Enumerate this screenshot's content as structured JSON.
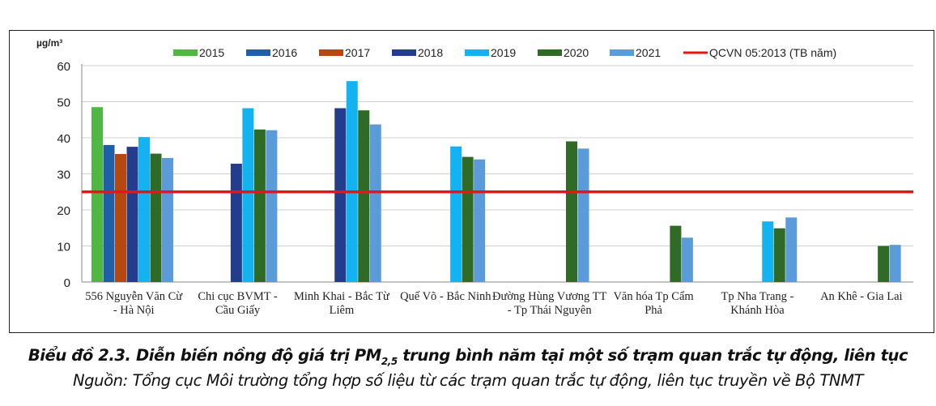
{
  "chart_data": {
    "type": "bar",
    "unit_label": "µg/m³",
    "ylim": [
      0,
      60
    ],
    "yticks": [
      0,
      10,
      20,
      30,
      40,
      50,
      60
    ],
    "grid": true,
    "legend_position": "top",
    "categories": [
      [
        "556 Nguyễn  Văn Cừ",
        "- Hà Nội"
      ],
      [
        "Chi cục BVMT -",
        "Cầu Giấy"
      ],
      [
        "Minh Khai - Bắc Từ",
        "Liêm"
      ],
      [
        "Quế Võ - Bắc Ninh"
      ],
      [
        "Đường Hùng Vương  TT",
        "- Tp Thái Nguyên"
      ],
      [
        "Văn hóa Tp Cẩm",
        "Phả"
      ],
      [
        "Tp Nha Trang -",
        "Khánh Hòa"
      ],
      [
        "An Khê - Gia Lai"
      ]
    ],
    "series": [
      {
        "name": "2015",
        "color": "#4fb843",
        "values": [
          48.5,
          null,
          null,
          null,
          null,
          null,
          null,
          null
        ]
      },
      {
        "name": "2016",
        "color": "#1f5fa8",
        "values": [
          38.0,
          null,
          null,
          null,
          null,
          null,
          null,
          null
        ]
      },
      {
        "name": "2017",
        "color": "#b5470f",
        "values": [
          35.5,
          null,
          null,
          null,
          null,
          null,
          null,
          null
        ]
      },
      {
        "name": "2018",
        "color": "#233d8c",
        "values": [
          37.5,
          32.8,
          48.2,
          null,
          null,
          null,
          null,
          null
        ]
      },
      {
        "name": "2019",
        "color": "#12b3f0",
        "values": [
          40.2,
          48.2,
          55.7,
          37.6,
          null,
          null,
          16.8,
          null
        ]
      },
      {
        "name": "2020",
        "color": "#2f6b27",
        "values": [
          35.6,
          42.3,
          47.6,
          34.7,
          39.0,
          15.6,
          14.9,
          10.0
        ]
      },
      {
        "name": "2021",
        "color": "#5b9bd9",
        "values": [
          34.4,
          42.1,
          43.7,
          34.0,
          37.0,
          12.3,
          17.9,
          10.3
        ]
      }
    ],
    "reference_line": {
      "name": "QCVN 05:2013 (TB năm)",
      "value": 25,
      "color": "#e8141a"
    }
  },
  "caption": {
    "title_prefix": "Biểu đồ 2.3. Diễn biến nồng độ giá trị PM",
    "title_sub": "2,5",
    "title_suffix": " trung bình năm tại một số trạm quan trắc tự động, liên tục",
    "source": "Nguồn: Tổng cục Môi trường tổng hợp số liệu từ các trạm quan trắc tự động, liên tục truyền về Bộ TNMT"
  }
}
